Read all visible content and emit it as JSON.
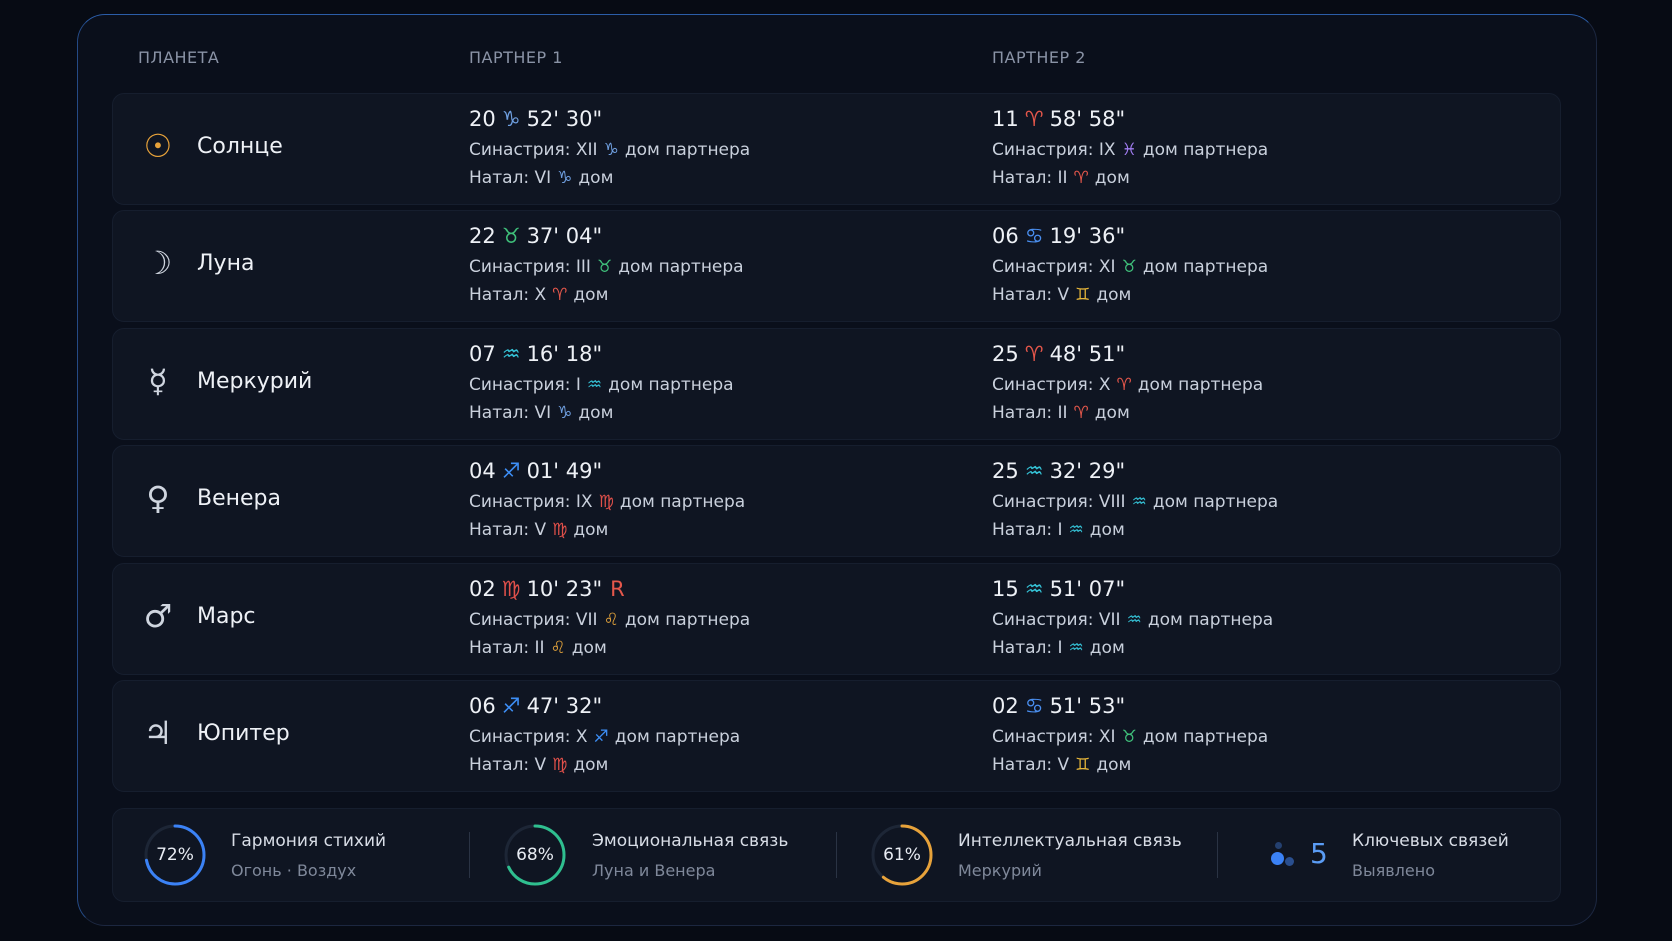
{
  "header": {
    "columns": [
      "ПЛАНЕТА",
      "ПАРТНЕР 1",
      "ПАРТНЕР 2"
    ]
  },
  "sign_colors": {
    "♑": "#6f9fe0",
    "♈": "#e5574b",
    "♉": "#3fbf7a",
    "♋": "#4a8ff0",
    "♒": "#35c2d6",
    "♐": "#3d8ef5",
    "♍": "#e0504a",
    "♌": "#e2a23b",
    "♓": "#a07cf0",
    "♊": "#e5b53a"
  },
  "rows": [
    {
      "symbol": "☉",
      "name": "Солнце",
      "partners": [
        {
          "pos": [
            "20",
            "♑",
            "52' 30\""
          ],
          "syn": [
            "Синастрия: XII",
            "♑",
            "дом партнера"
          ],
          "nat": [
            "Натал: VI",
            "♑",
            "дом"
          ]
        },
        {
          "pos": [
            "11",
            "♈",
            "58' 58\""
          ],
          "syn": [
            "Синастрия: IX",
            "♓",
            "дом партнера"
          ],
          "nat": [
            "Натал: II",
            "♈",
            "дом"
          ]
        }
      ]
    },
    {
      "symbol": "☽",
      "name": "Луна",
      "partners": [
        {
          "pos": [
            "22",
            "♉",
            "37' 04\""
          ],
          "syn": [
            "Синастрия: III",
            "♉",
            "дом партнера"
          ],
          "nat": [
            "Натал: X",
            "♈",
            "дом"
          ]
        },
        {
          "pos": [
            "06",
            "♋",
            "19' 36\""
          ],
          "syn": [
            "Синастрия: XI",
            "♉",
            "дом партнера"
          ],
          "nat": [
            "Натал: V",
            "♊",
            "дом"
          ]
        }
      ]
    },
    {
      "symbol": "☿",
      "name": "Меркурий",
      "partners": [
        {
          "pos": [
            "07",
            "♒",
            "16' 18\""
          ],
          "syn": [
            "Синастрия: I",
            "♒",
            "дом партнера"
          ],
          "nat": [
            "Натал: VI",
            "♑",
            "дом"
          ]
        },
        {
          "pos": [
            "25",
            "♈",
            "48' 51\""
          ],
          "syn": [
            "Синастрия: X",
            "♈",
            "дом партнера"
          ],
          "nat": [
            "Натал: II",
            "♈",
            "дом"
          ]
        }
      ]
    },
    {
      "symbol": "♀",
      "name": "Венера",
      "partners": [
        {
          "pos": [
            "04",
            "♐",
            "01' 49\""
          ],
          "syn": [
            "Синастрия: IX",
            "♍",
            "дом партнера"
          ],
          "nat": [
            "Натал: V",
            "♍",
            "дом"
          ]
        },
        {
          "pos": [
            "25",
            "♒",
            "32' 29\""
          ],
          "syn": [
            "Синастрия: VIII",
            "♒",
            "дом партнера"
          ],
          "nat": [
            "Натал: I",
            "♒",
            "дом"
          ]
        }
      ]
    },
    {
      "symbol": "♂",
      "name": "Марс",
      "partners": [
        {
          "pos": [
            "02",
            "♍",
            "10' 23\""
          ],
          "retro": "R",
          "syn": [
            "Синастрия: VII",
            "♌",
            "дом партнера"
          ],
          "nat": [
            "Натал: II",
            "♌",
            "дом"
          ]
        },
        {
          "pos": [
            "15",
            "♒",
            "51' 07\""
          ],
          "syn": [
            "Синастрия: VII",
            "♒",
            "дом партнера"
          ],
          "nat": [
            "Натал: I",
            "♒",
            "дом"
          ]
        }
      ]
    },
    {
      "symbol": "♃",
      "name": "Юпитер",
      "partners": [
        {
          "pos": [
            "06",
            "♐",
            "47' 32\""
          ],
          "syn": [
            "Синастрия: X",
            "♐",
            "дом партнера"
          ],
          "nat": [
            "Натал: V",
            "♍",
            "дом"
          ]
        },
        {
          "pos": [
            "02",
            "♋",
            "51' 53\""
          ],
          "syn": [
            "Синастрия: XI",
            "♉",
            "дом партнера"
          ],
          "nat": [
            "Натал: V",
            "♊",
            "дом"
          ]
        }
      ]
    }
  ],
  "stats": [
    {
      "percent": 72,
      "percent_label": "72%",
      "color": "#3b82f6",
      "title": "Гармония стихий",
      "subtitle": "Огонь · Воздух"
    },
    {
      "percent": 68,
      "percent_label": "68%",
      "color": "#2fbf8f",
      "title": "Эмоциональная связь",
      "subtitle": "Луна и Венера"
    },
    {
      "percent": 61,
      "percent_label": "61%",
      "color": "#e7a23a",
      "title": "Интеллектуальная связь",
      "subtitle": "Меркурий"
    }
  ],
  "key_links": {
    "count": "5",
    "title": "Ключевых связей",
    "subtitle": "Выявлено"
  }
}
